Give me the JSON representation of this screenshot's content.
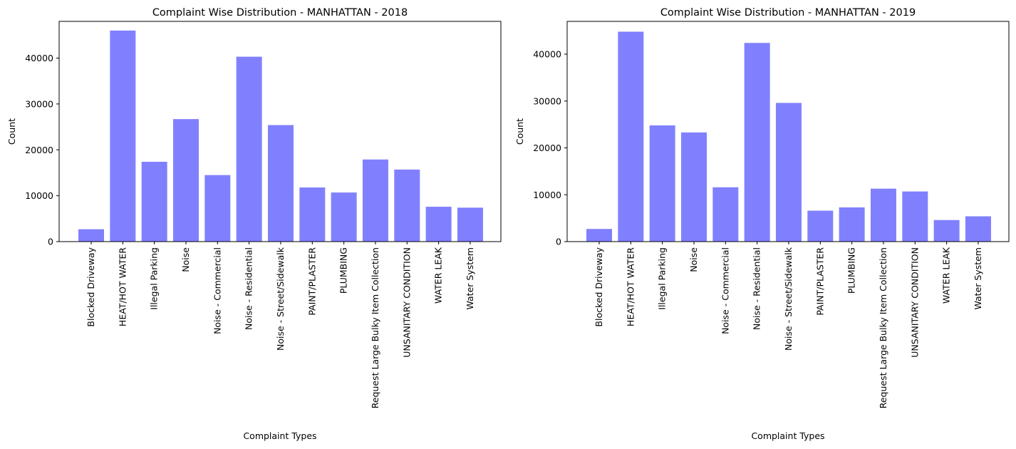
{
  "bar_color": "#8080ff",
  "chart_data": [
    {
      "type": "bar",
      "title": "Complaint Wise Distribution - MANHATTAN - 2018",
      "xlabel": "Complaint Types",
      "ylabel": "Count",
      "ylim": [
        0,
        48000
      ],
      "yticks": [
        0,
        10000,
        20000,
        30000,
        40000
      ],
      "categories": [
        "Blocked Driveway",
        "HEAT/HOT WATER",
        "Illegal Parking",
        "Noise",
        "Noise - Commercial",
        "Noise - Residential",
        "Noise - Street/Sidewalk",
        "PAINT/PLASTER",
        "PLUMBING",
        "Request Large Bulky Item Collection",
        "UNSANITARY CONDITION",
        "WATER LEAK",
        "Water System"
      ],
      "values": [
        2700,
        46000,
        17400,
        26700,
        14500,
        40300,
        25400,
        11800,
        10700,
        17900,
        15700,
        7600,
        7400
      ],
      "grid": false
    },
    {
      "type": "bar",
      "title": "Complaint Wise Distribution - MANHATTAN - 2019",
      "xlabel": "Complaint Types",
      "ylabel": "Count",
      "ylim": [
        0,
        47000
      ],
      "yticks": [
        0,
        10000,
        20000,
        30000,
        40000
      ],
      "categories": [
        "Blocked Driveway",
        "HEAT/HOT WATER",
        "Illegal Parking",
        "Noise",
        "Noise - Commercial",
        "Noise - Residential",
        "Noise - Street/Sidewalk",
        "PAINT/PLASTER",
        "PLUMBING",
        "Request Large Bulky Item Collection",
        "UNSANITARY CONDITION",
        "WATER LEAK",
        "Water System"
      ],
      "values": [
        2700,
        44800,
        24800,
        23300,
        11600,
        42400,
        29600,
        6600,
        7300,
        11300,
        10700,
        4600,
        5400
      ],
      "grid": false
    }
  ]
}
